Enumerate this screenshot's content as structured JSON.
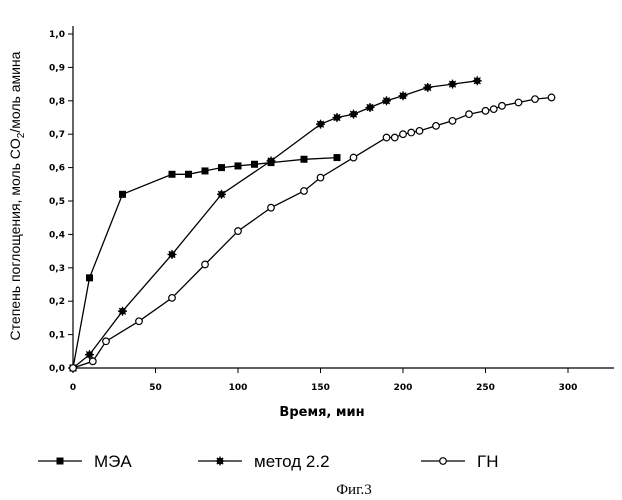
{
  "chart_data": {
    "type": "line",
    "xlabel": "Время, мин",
    "ylabel": "Степень поглощения, моль CO",
    "ylabel_sub": "2",
    "ylabel_tail": "/моль амина",
    "xlim": [
      0,
      330
    ],
    "ylim": [
      0,
      1.0
    ],
    "x_ticks": [
      0,
      50,
      100,
      150,
      200,
      250,
      300
    ],
    "x_tick_labels": [
      "0",
      "50",
      "100",
      "150",
      "200",
      "250",
      "300"
    ],
    "y_ticks": [
      0,
      0.1,
      0.2,
      0.3,
      0.4,
      0.5,
      0.6,
      0.7,
      0.8,
      0.9,
      1.0
    ],
    "y_tick_labels": [
      "0,0",
      "0,1",
      "0,2",
      "0,3",
      "0,4",
      "0,5",
      "0,6",
      "0,7",
      "0,8",
      "0,9",
      "1,0"
    ],
    "grid": false,
    "legend_position": "bottom",
    "series": [
      {
        "name": "МЭА",
        "marker": "square",
        "x": [
          0,
          10,
          30,
          60,
          70,
          80,
          90,
          100,
          110,
          120,
          140,
          160
        ],
        "y": [
          0.0,
          0.27,
          0.52,
          0.58,
          0.58,
          0.59,
          0.6,
          0.605,
          0.61,
          0.615,
          0.625,
          0.63
        ]
      },
      {
        "name": "метод 2.2",
        "marker": "star",
        "x": [
          0,
          10,
          30,
          60,
          90,
          120,
          150,
          160,
          170,
          180,
          190,
          200,
          215,
          230,
          245
        ],
        "y": [
          0.0,
          0.04,
          0.17,
          0.34,
          0.52,
          0.62,
          0.73,
          0.75,
          0.76,
          0.78,
          0.8,
          0.815,
          0.84,
          0.85,
          0.86
        ]
      },
      {
        "name": "ГН",
        "marker": "open-circle",
        "x": [
          0,
          12,
          20,
          40,
          60,
          80,
          100,
          120,
          140,
          150,
          170,
          190,
          195,
          200,
          205,
          210,
          220,
          230,
          240,
          250,
          255,
          260,
          270,
          280,
          290
        ],
        "y": [
          0.0,
          0.02,
          0.08,
          0.14,
          0.21,
          0.31,
          0.41,
          0.48,
          0.53,
          0.57,
          0.63,
          0.69,
          0.69,
          0.7,
          0.705,
          0.71,
          0.725,
          0.74,
          0.76,
          0.77,
          0.775,
          0.785,
          0.795,
          0.805,
          0.81
        ]
      }
    ]
  },
  "caption": "Фиг.3"
}
